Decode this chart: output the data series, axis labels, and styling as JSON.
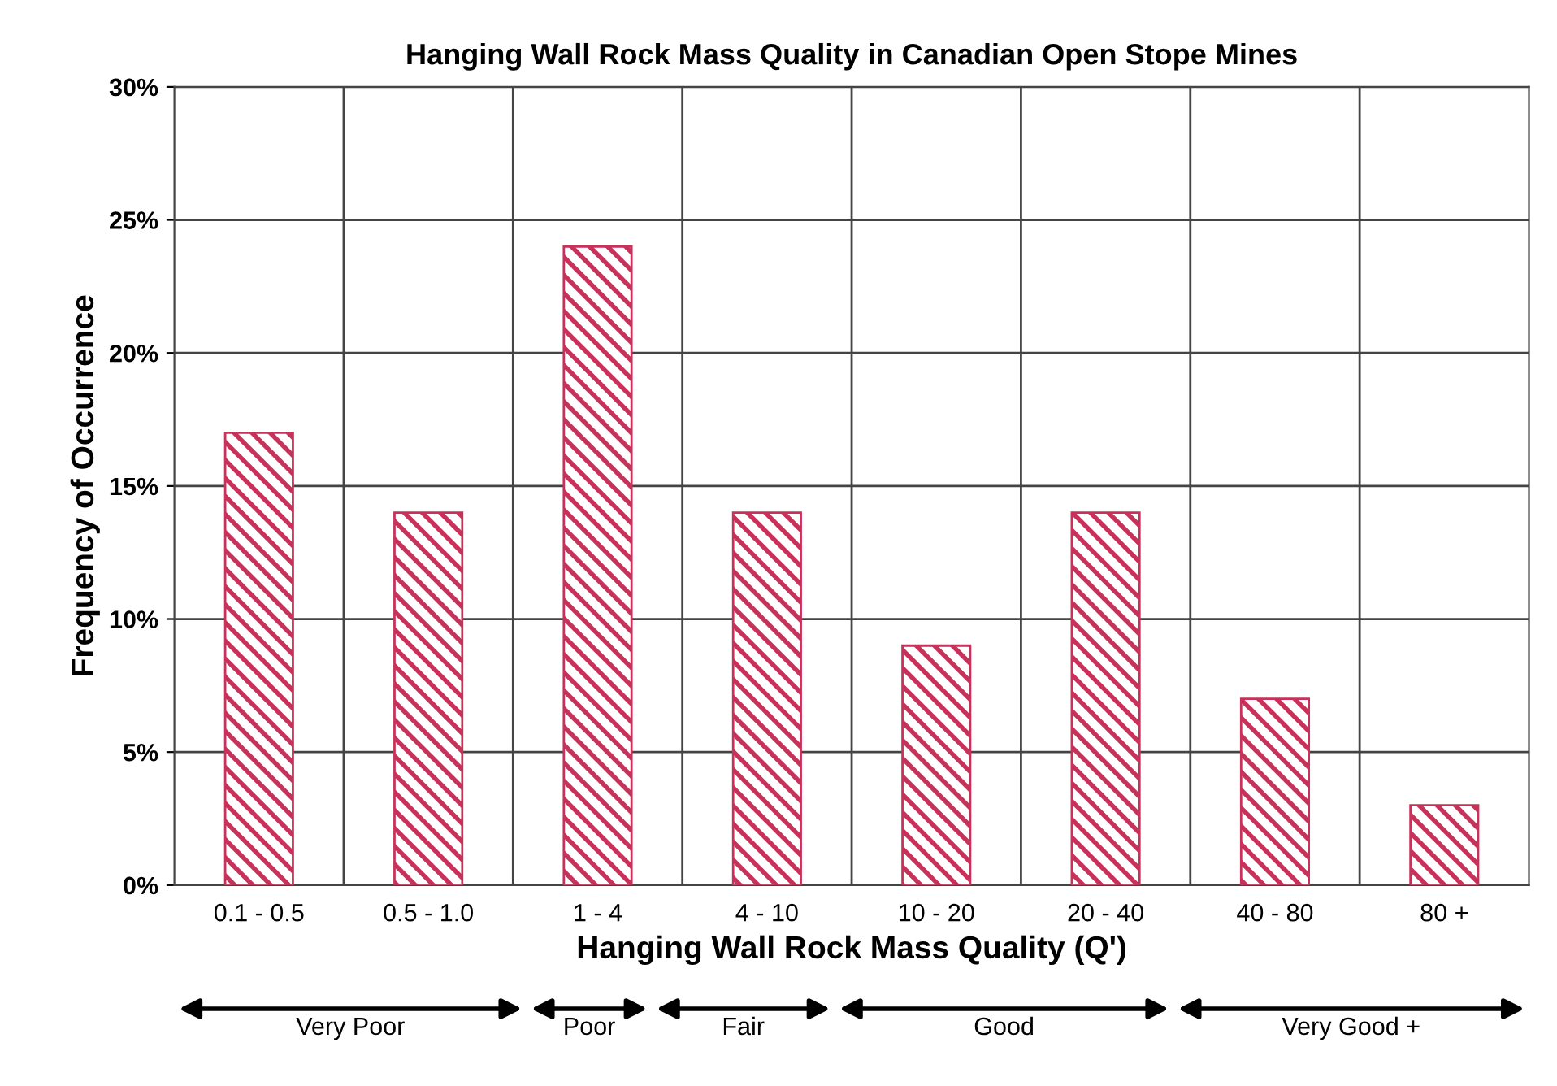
{
  "chart_data": {
    "type": "bar",
    "title": "Hanging Wall Rock Mass Quality in Canadian Open Stope Mines",
    "xlabel": "Hanging Wall Rock Mass Quality (Q')",
    "ylabel": "Frequency of Occurrence",
    "categories": [
      "0.1 - 0.5",
      "0.5 - 1.0",
      "1 - 4",
      "4 - 10",
      "10 - 20",
      "20 - 40",
      "40 - 80",
      "80 +"
    ],
    "values": [
      17,
      14,
      24,
      14,
      9,
      14,
      7,
      3
    ],
    "color": "#c8325a",
    "ylim": [
      0,
      30
    ],
    "yticks": [
      {
        "value": 0,
        "label": "0%"
      },
      {
        "value": 5,
        "label": "5%"
      },
      {
        "value": 10,
        "label": "10%"
      },
      {
        "value": 15,
        "label": "15%"
      },
      {
        "value": 20,
        "label": "20%"
      },
      {
        "value": 25,
        "label": "25%"
      },
      {
        "value": 30,
        "label": "30%"
      }
    ],
    "grid": true,
    "annotations": [
      "Very Poor",
      "Poor",
      "Fair",
      "Good",
      "Very Good +"
    ]
  }
}
